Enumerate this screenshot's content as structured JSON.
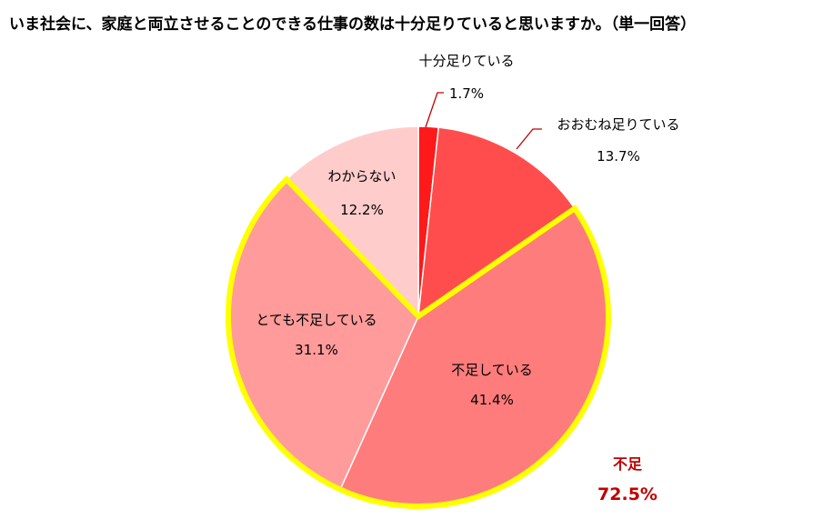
{
  "chart_data": {
    "type": "pie",
    "title": "いま社会に、家庭と両立させることのできる仕事の数は十分足りていると思いますか。（単一回答）",
    "slices": [
      {
        "label": "十分足りている",
        "value": 1.7,
        "value_label": "1.7%",
        "color": "#ff1a1a"
      },
      {
        "label": "おおむね足りている",
        "value": 13.7,
        "value_label": "13.7%",
        "color": "#ff4d4d"
      },
      {
        "label": "不足している",
        "value": 41.4,
        "value_label": "41.4%",
        "color": "#ff7c7c"
      },
      {
        "label": "とても不足している",
        "value": 31.1,
        "value_label": "31.1%",
        "color": "#ff9b9b"
      },
      {
        "label": "わからない",
        "value": 12.2,
        "value_label": "12.2%",
        "color": "#ffcccc"
      }
    ],
    "start_angle": "12 o'clock",
    "direction": "clockwise",
    "highlight": {
      "label": "不足",
      "value": 72.5,
      "value_label": "72.5%",
      "slices": [
        "不足している",
        "とても不足している"
      ],
      "outline_color": "#ffff00",
      "text_color": "#c00000"
    },
    "leader_line_color": "#c00000",
    "slice_border_color": "#ffffff"
  }
}
